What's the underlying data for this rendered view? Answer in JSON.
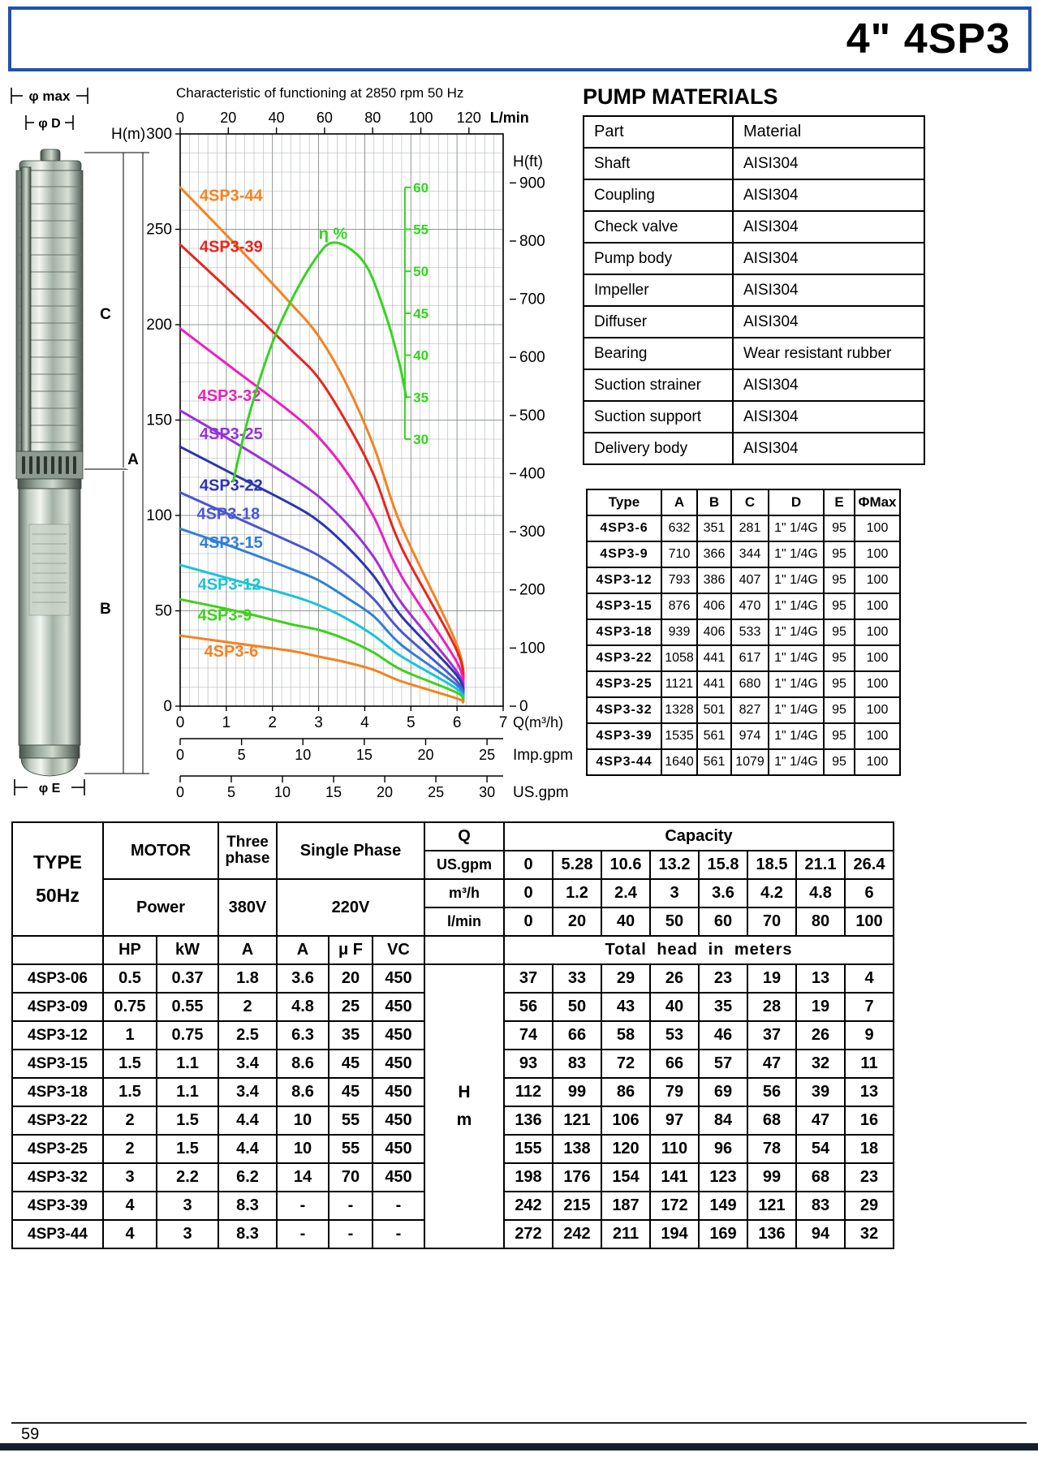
{
  "page": {
    "title": "4\"  4SP3",
    "page_number": "59"
  },
  "pump_figure": {
    "dims": {
      "phi_max": "φ max",
      "phi_d": "φ D",
      "c": "C",
      "a": "A",
      "b": "B",
      "phi_e": "φ E"
    }
  },
  "chart_data": {
    "type": "line",
    "title": "Characteristic of  functioning at 2850 rpm 50 Hz",
    "x_axes": {
      "top": {
        "label": "L/min",
        "ticks": [
          0,
          20,
          40,
          60,
          80,
          100,
          120
        ]
      },
      "bottom": {
        "label": "Q(m³/h)",
        "ticks": [
          0,
          1,
          2,
          3,
          4,
          5,
          6,
          7
        ],
        "range": [
          0,
          7
        ]
      },
      "imp_gpm": {
        "label": "Imp.gpm",
        "ticks": [
          0,
          5,
          10,
          15,
          20,
          25
        ]
      },
      "us_gpm": {
        "label": "US.gpm",
        "ticks": [
          0,
          5,
          10,
          15,
          20,
          25,
          30
        ]
      }
    },
    "y_axes": {
      "left": {
        "label": "H(m)",
        "ticks": [
          0,
          50,
          100,
          150,
          200,
          250,
          300
        ],
        "range": [
          0,
          300
        ]
      },
      "right": {
        "label": "H(ft)",
        "ticks": [
          0,
          100,
          200,
          300,
          400,
          500,
          600,
          700,
          800,
          900
        ]
      },
      "efficiency": {
        "label": "η %",
        "ticks": [
          30,
          35,
          40,
          45,
          50,
          55,
          60
        ]
      }
    },
    "x_m3h": [
      0,
      1.2,
      2.4,
      3,
      3.6,
      4.2,
      4.8,
      6
    ],
    "series": [
      {
        "name": "4SP3-44",
        "color": "#f5821f",
        "values": [
          272,
          242,
          211,
          194,
          169,
          136,
          94,
          32
        ],
        "label_pos": [
          0.42,
          265
        ]
      },
      {
        "name": "4SP3-39",
        "color": "#e8251d",
        "values": [
          242,
          215,
          187,
          172,
          149,
          121,
          83,
          29
        ],
        "label_pos": [
          0.42,
          238
        ]
      },
      {
        "name": "4SP3-32",
        "color": "#ec1fc0",
        "values": [
          198,
          176,
          154,
          141,
          123,
          99,
          68,
          23
        ],
        "label_pos": [
          0.38,
          160
        ]
      },
      {
        "name": "4SP3-25",
        "color": "#9b30d9",
        "values": [
          155,
          138,
          120,
          110,
          96,
          78,
          54,
          18
        ],
        "label_pos": [
          0.42,
          140
        ]
      },
      {
        "name": "4SP3-22",
        "color": "#2c35b0",
        "values": [
          136,
          121,
          106,
          97,
          84,
          68,
          47,
          16
        ],
        "label_pos": [
          0.42,
          113
        ]
      },
      {
        "name": "4SP3-18",
        "color": "#4a56d6",
        "values": [
          112,
          99,
          86,
          79,
          69,
          56,
          39,
          13
        ],
        "label_pos": [
          0.36,
          98
        ]
      },
      {
        "name": "4SP3-15",
        "color": "#2f7fd6",
        "values": [
          93,
          83,
          72,
          66,
          57,
          47,
          32,
          11
        ],
        "label_pos": [
          0.42,
          83
        ]
      },
      {
        "name": "4SP3-12",
        "color": "#18c3da",
        "values": [
          74,
          66,
          58,
          53,
          46,
          37,
          26,
          9
        ],
        "label_pos": [
          0.38,
          61
        ]
      },
      {
        "name": "4SP3-9",
        "color": "#3ed01e",
        "values": [
          56,
          50,
          43,
          40,
          35,
          28,
          19,
          7
        ],
        "label_pos": [
          0.38,
          45
        ]
      },
      {
        "name": "4SP3-6",
        "color": "#f5821f",
        "values": [
          37,
          33,
          29,
          26,
          23,
          19,
          13,
          4
        ],
        "label_pos": [
          0.52,
          26
        ]
      }
    ],
    "efficiency_curve": {
      "color": "#35d41e",
      "points": [
        [
          1.15,
          25
        ],
        [
          1.5,
          33
        ],
        [
          2.0,
          41.5
        ],
        [
          2.5,
          47.5
        ],
        [
          3.0,
          52
        ],
        [
          3.3,
          53.4
        ],
        [
          3.7,
          52.6
        ],
        [
          4.1,
          50
        ],
        [
          4.5,
          44
        ],
        [
          4.75,
          39
        ],
        [
          4.9,
          35
        ]
      ]
    }
  },
  "materials": {
    "heading": "PUMP MATERIALS",
    "columns": [
      "Part",
      "Material"
    ],
    "rows": [
      [
        "Shaft",
        "AISI304"
      ],
      [
        "Coupling",
        "AISI304"
      ],
      [
        "Check valve",
        "AISI304"
      ],
      [
        "Pump body",
        "AISI304"
      ],
      [
        "Impeller",
        "AISI304"
      ],
      [
        "Diffuser",
        "AISI304"
      ],
      [
        "Bearing",
        "Wear resistant rubber"
      ],
      [
        "Suction strainer",
        "AISI304"
      ],
      [
        "Suction support",
        "AISI304"
      ],
      [
        "Delivery body",
        "AISI304"
      ]
    ]
  },
  "dimensions_table": {
    "columns": [
      "Type",
      "A",
      "B",
      "C",
      "D",
      "E",
      "ΦMax"
    ],
    "rows": [
      [
        "4SP3-6",
        "632",
        "351",
        "281",
        "1\" 1/4G",
        "95",
        "100"
      ],
      [
        "4SP3-9",
        "710",
        "366",
        "344",
        "1\" 1/4G",
        "95",
        "100"
      ],
      [
        "4SP3-12",
        "793",
        "386",
        "407",
        "1\" 1/4G",
        "95",
        "100"
      ],
      [
        "4SP3-15",
        "876",
        "406",
        "470",
        "1\" 1/4G",
        "95",
        "100"
      ],
      [
        "4SP3-18",
        "939",
        "406",
        "533",
        "1\" 1/4G",
        "95",
        "100"
      ],
      [
        "4SP3-22",
        "1058",
        "441",
        "617",
        "1\" 1/4G",
        "95",
        "100"
      ],
      [
        "4SP3-25",
        "1121",
        "441",
        "680",
        "1\" 1/4G",
        "95",
        "100"
      ],
      [
        "4SP3-32",
        "1328",
        "501",
        "827",
        "1\" 1/4G",
        "95",
        "100"
      ],
      [
        "4SP3-39",
        "1535",
        "561",
        "974",
        "1\" 1/4G",
        "95",
        "100"
      ],
      [
        "4SP3-44",
        "1640",
        "561",
        "1079",
        "1\" 1/4G",
        "95",
        "100"
      ]
    ]
  },
  "performance_table": {
    "header": {
      "type": "TYPE",
      "freq": "50Hz",
      "motor": "MOTOR",
      "power": "Power",
      "three_phase": "Three phase",
      "v380": "380V",
      "single_phase": "Single Phase",
      "v220": "220V",
      "q": "Q",
      "capacity": "Capacity",
      "us_gpm": "US.gpm",
      "m3h": "m³/h",
      "lmin": "l/min",
      "hp": "HP",
      "kw": "kW",
      "a3": "A",
      "a1": "A",
      "uf": "μ F",
      "vc": "VC",
      "total_head": "Total  head  in  meters",
      "hm": "H\nm"
    },
    "capacity_rows": {
      "us_gpm": [
        "0",
        "5.28",
        "10.6",
        "13.2",
        "15.8",
        "18.5",
        "21.1",
        "26.4"
      ],
      "m3h": [
        "0",
        "1.2",
        "2.4",
        "3",
        "3.6",
        "4.2",
        "4.8",
        "6"
      ],
      "lmin": [
        "0",
        "20",
        "40",
        "50",
        "60",
        "70",
        "80",
        "100"
      ]
    },
    "rows": [
      {
        "type": "4SP3-06",
        "hp": "0.5",
        "kw": "0.37",
        "a380": "1.8",
        "a220": "3.6",
        "uf": "20",
        "vc": "450",
        "heads": [
          "37",
          "33",
          "29",
          "26",
          "23",
          "19",
          "13",
          "4"
        ]
      },
      {
        "type": "4SP3-09",
        "hp": "0.75",
        "kw": "0.55",
        "a380": "2",
        "a220": "4.8",
        "uf": "25",
        "vc": "450",
        "heads": [
          "56",
          "50",
          "43",
          "40",
          "35",
          "28",
          "19",
          "7"
        ]
      },
      {
        "type": "4SP3-12",
        "hp": "1",
        "kw": "0.75",
        "a380": "2.5",
        "a220": "6.3",
        "uf": "35",
        "vc": "450",
        "heads": [
          "74",
          "66",
          "58",
          "53",
          "46",
          "37",
          "26",
          "9"
        ]
      },
      {
        "type": "4SP3-15",
        "hp": "1.5",
        "kw": "1.1",
        "a380": "3.4",
        "a220": "8.6",
        "uf": "45",
        "vc": "450",
        "heads": [
          "93",
          "83",
          "72",
          "66",
          "57",
          "47",
          "32",
          "11"
        ]
      },
      {
        "type": "4SP3-18",
        "hp": "1.5",
        "kw": "1.1",
        "a380": "3.4",
        "a220": "8.6",
        "uf": "45",
        "vc": "450",
        "heads": [
          "112",
          "99",
          "86",
          "79",
          "69",
          "56",
          "39",
          "13"
        ]
      },
      {
        "type": "4SP3-22",
        "hp": "2",
        "kw": "1.5",
        "a380": "4.4",
        "a220": "10",
        "uf": "55",
        "vc": "450",
        "heads": [
          "136",
          "121",
          "106",
          "97",
          "84",
          "68",
          "47",
          "16"
        ]
      },
      {
        "type": "4SP3-25",
        "hp": "2",
        "kw": "1.5",
        "a380": "4.4",
        "a220": "10",
        "uf": "55",
        "vc": "450",
        "heads": [
          "155",
          "138",
          "120",
          "110",
          "96",
          "78",
          "54",
          "18"
        ]
      },
      {
        "type": "4SP3-32",
        "hp": "3",
        "kw": "2.2",
        "a380": "6.2",
        "a220": "14",
        "uf": "70",
        "vc": "450",
        "heads": [
          "198",
          "176",
          "154",
          "141",
          "123",
          "99",
          "68",
          "23"
        ]
      },
      {
        "type": "4SP3-39",
        "hp": "4",
        "kw": "3",
        "a380": "8.3",
        "a220": "-",
        "uf": "-",
        "vc": "-",
        "heads": [
          "242",
          "215",
          "187",
          "172",
          "149",
          "121",
          "83",
          "29"
        ]
      },
      {
        "type": "4SP3-44",
        "hp": "4",
        "kw": "3",
        "a380": "8.3",
        "a220": "-",
        "uf": "-",
        "vc": "-",
        "heads": [
          "272",
          "242",
          "211",
          "194",
          "169",
          "136",
          "94",
          "32"
        ]
      }
    ]
  }
}
